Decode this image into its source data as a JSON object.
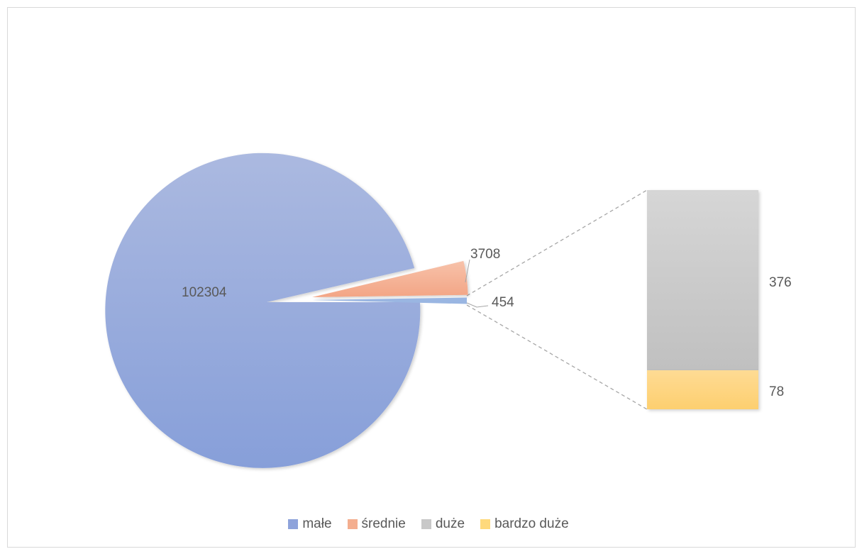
{
  "chart_data": {
    "type": "pie",
    "subtype": "bar-of-pie",
    "title": "",
    "categories": [
      "małe",
      "średnie",
      "duże",
      "bardzo duże"
    ],
    "values": [
      102304,
      3708,
      376,
      78
    ],
    "pie": {
      "slices": [
        {
          "label": "małe",
          "value": 102304,
          "color": "#8ea3db"
        },
        {
          "label": "średnie",
          "value": 3708,
          "color": "#f4ae8f"
        },
        {
          "label": "454",
          "value": 454,
          "color": "#9bb7e0",
          "is_other": true
        }
      ]
    },
    "bar": {
      "segments": [
        {
          "label": "duże",
          "value": 376,
          "color": "#c8c8c8"
        },
        {
          "label": "bardzo duże",
          "value": 78,
          "color": "#fed97c"
        }
      ]
    },
    "legend_position": "bottom"
  },
  "labels": {
    "small": "102304",
    "medium": "3708",
    "other": "454",
    "large": "376",
    "very_large": "78"
  },
  "legend": [
    {
      "label": "małe",
      "color": "#8ea3db"
    },
    {
      "label": "średnie",
      "color": "#f4ae8f"
    },
    {
      "label": "duże",
      "color": "#c8c8c8"
    },
    {
      "label": "bardzo duże",
      "color": "#fed97c"
    }
  ]
}
